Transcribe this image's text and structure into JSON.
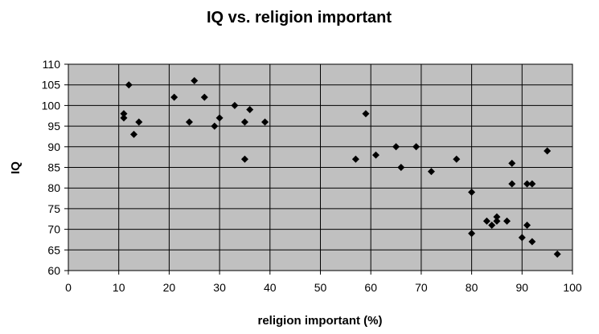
{
  "chart_data": {
    "type": "scatter",
    "title": "IQ vs. religion important",
    "xlabel": "religion important (%)",
    "ylabel": "IQ",
    "xlim": [
      0,
      100
    ],
    "ylim": [
      60,
      110
    ],
    "x_ticks": [
      "0",
      "10",
      "20",
      "30",
      "40",
      "50",
      "60",
      "70",
      "80",
      "90",
      "100"
    ],
    "y_ticks": [
      "60",
      "65",
      "70",
      "75",
      "80",
      "85",
      "90",
      "95",
      "100",
      "105",
      "110"
    ],
    "grid": true,
    "legend": "none",
    "colors": {
      "plot_background": "#c0c0c0",
      "gridline": "#000000",
      "marker": "#000000"
    },
    "marker_shape": "diamond",
    "series": [
      {
        "points": [
          {
            "x": 11,
            "y": 98
          },
          {
            "x": 11,
            "y": 97
          },
          {
            "x": 12,
            "y": 105
          },
          {
            "x": 13,
            "y": 93
          },
          {
            "x": 14,
            "y": 96
          },
          {
            "x": 21,
            "y": 102
          },
          {
            "x": 24,
            "y": 96
          },
          {
            "x": 25,
            "y": 106
          },
          {
            "x": 27,
            "y": 102
          },
          {
            "x": 29,
            "y": 95
          },
          {
            "x": 30,
            "y": 97
          },
          {
            "x": 33,
            "y": 100
          },
          {
            "x": 35,
            "y": 96
          },
          {
            "x": 35,
            "y": 87
          },
          {
            "x": 36,
            "y": 99
          },
          {
            "x": 39,
            "y": 96
          },
          {
            "x": 57,
            "y": 87
          },
          {
            "x": 59,
            "y": 98
          },
          {
            "x": 61,
            "y": 88
          },
          {
            "x": 65,
            "y": 90
          },
          {
            "x": 66,
            "y": 85
          },
          {
            "x": 69,
            "y": 90
          },
          {
            "x": 72,
            "y": 84
          },
          {
            "x": 77,
            "y": 87
          },
          {
            "x": 80,
            "y": 79
          },
          {
            "x": 80,
            "y": 69
          },
          {
            "x": 83,
            "y": 72
          },
          {
            "x": 84,
            "y": 71
          },
          {
            "x": 85,
            "y": 73
          },
          {
            "x": 85,
            "y": 72
          },
          {
            "x": 87,
            "y": 72
          },
          {
            "x": 88,
            "y": 86
          },
          {
            "x": 88,
            "y": 81
          },
          {
            "x": 90,
            "y": 68
          },
          {
            "x": 91,
            "y": 81
          },
          {
            "x": 91,
            "y": 71
          },
          {
            "x": 92,
            "y": 81
          },
          {
            "x": 92,
            "y": 67
          },
          {
            "x": 95,
            "y": 89
          },
          {
            "x": 97,
            "y": 64
          }
        ]
      }
    ]
  }
}
